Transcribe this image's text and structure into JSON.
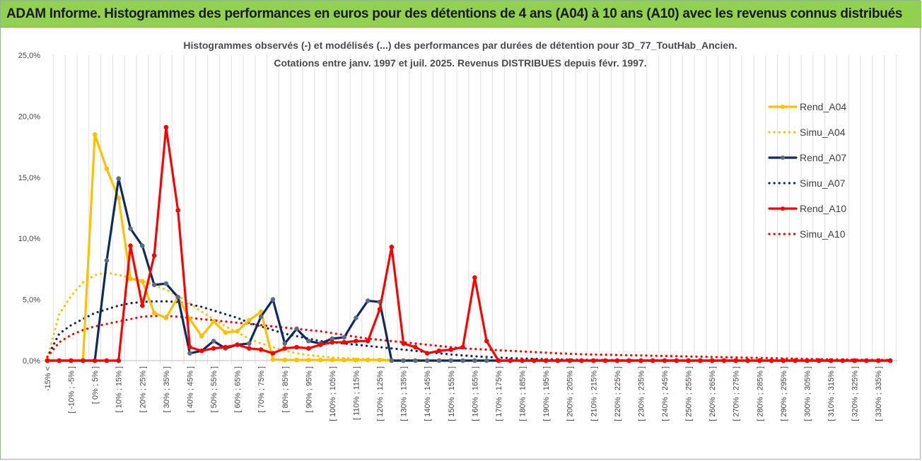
{
  "header": {
    "banner": "ADAM Informe. Histogrammes des performances en euros pour des détentions de 4 ans (A04) à 10 ans (A10) avec les revenus connus distribués"
  },
  "colors": {
    "banner_bg": "#92d050",
    "A04": "#ffc000",
    "A07": "#0f2a5c",
    "A10": "#ff0000",
    "A07_marker": "#5a6e8a"
  },
  "chart_data": {
    "type": "line",
    "title": [
      "Histogrammes observés (-) et modélisés (...) des performances par durées de détention pour 3D_77_ToutHab_Ancien.",
      "Cotations entre janv. 1997 et juil. 2025. Revenus DISTRIBUES depuis févr. 1997."
    ],
    "xlabel": "",
    "ylabel": "",
    "ylim": [
      0,
      25
    ],
    "y_ticks": [
      "0,0%",
      "5,0%",
      "10,0%",
      "15,0%",
      "20,0%",
      "25,0%"
    ],
    "grid": "vertical",
    "legend_position": "right",
    "categories": [
      "-15% <",
      "[ -15% ; -10% ]",
      "[ -10% ; -5% ]",
      "[ -5% ; 0% ]",
      "[ 0% ; 5% ]",
      "[ 5% ; 10% ]",
      "[ 10% ; 15% ]",
      "[ 15% ; 20% ]",
      "[ 20% ; 25% ]",
      "[ 25% ; 30% ]",
      "[ 30% ; 35% ]",
      "[ 35% ; 40% ]",
      "[ 40% ; 45% ]",
      "[ 45% ; 50% ]",
      "[ 50% ; 55% ]",
      "[ 55% ; 60% ]",
      "[ 60% ; 65% ]",
      "[ 65% ; 70% ]",
      "[ 70% ; 75% ]",
      "[ 75% ; 80% ]",
      "[ 80% ; 85% ]",
      "[ 85% ; 90% ]",
      "[ 90% ; 95% ]",
      "[ 95% ; 100% ]",
      "[ 100% ; 105% ]",
      "[ 105% ; 110% ]",
      "[ 110% ; 115% ]",
      "[ 115% ; 120% ]",
      "[ 120% ; 125% ]",
      "[ 125% ; 130% ]",
      "[ 130% ; 135% ]",
      "[ 135% ; 140% ]",
      "[ 140% ; 145% ]",
      "[ 145% ; 150% ]",
      "[ 150% ; 155% ]",
      "[ 155% ; 160% ]",
      "[ 160% ; 165% ]",
      "[ 165% ; 170% ]",
      "[ 170% ; 175% ]",
      "[ 175% ; 180% ]",
      "[ 180% ; 185% ]",
      "[ 185% ; 190% ]",
      "[ 190% ; 195% ]",
      "[ 195% ; 200% ]",
      "[ 200% ; 205% ]",
      "[ 205% ; 210% ]",
      "[ 210% ; 215% ]",
      "[ 215% ; 220% ]",
      "[ 220% ; 225% ]",
      "[ 225% ; 230% ]",
      "[ 230% ; 235% ]",
      "[ 235% ; 240% ]",
      "[ 240% ; 245% ]",
      "[ 245% ; 250% ]",
      "[ 250% ; 255% ]",
      "[ 255% ; 260% ]",
      "[ 260% ; 265% ]",
      "[ 265% ; 270% ]",
      "[ 270% ; 275% ]",
      "[ 275% ; 280% ]",
      "[ 280% ; 285% ]",
      "[ 285% ; 290% ]",
      "[ 290% ; 295% ]",
      "[ 295% ; 300% ]",
      "[ 300% ; 305% ]",
      "[ 305% ; 310% ]",
      "[ 310% ; 315% ]",
      "[ 315% ; 320% ]",
      "[ 320% ; 325% ]",
      "[ 325% ; 330% ]",
      "[ 330% ; 335% ]",
      "[ 335% ; 340% ]"
    ],
    "series": [
      {
        "name": "Rend_A04",
        "style": "solid",
        "color": "#ffc000",
        "marker": true,
        "values": [
          0,
          0,
          0,
          0,
          18.5,
          15.7,
          13.3,
          6.7,
          6.5,
          3.9,
          3.5,
          5.2,
          3.4,
          2.0,
          3.2,
          2.3,
          2.4,
          3.3,
          4.0,
          0.1,
          0.05,
          0.05,
          0.05,
          0.05,
          0.05,
          0.05,
          0.05,
          0.05,
          0.05,
          0,
          0,
          0,
          0,
          0,
          0,
          0,
          0,
          0,
          0,
          0,
          0,
          0,
          0,
          0,
          0,
          0,
          0,
          0,
          0,
          0,
          0,
          0,
          0,
          0,
          0,
          0,
          0,
          0,
          0,
          0,
          0,
          0,
          0,
          0,
          0,
          0,
          0,
          0,
          0,
          0,
          0,
          0
        ]
      },
      {
        "name": "Simu_A04",
        "style": "dotted",
        "color": "#ffc000",
        "marker": false,
        "values": [
          0.2,
          3.8,
          5.3,
          6.4,
          7.0,
          7.2,
          7.0,
          6.8,
          6.5,
          6.2,
          5.8,
          5.3,
          4.7,
          4.0,
          3.4,
          2.8,
          2.3,
          1.8,
          1.4,
          1.1,
          0.8,
          0.6,
          0.45,
          0.35,
          0.25,
          0.2,
          0.15,
          0.12,
          0.1,
          0.08,
          0.06,
          0.05,
          0.04,
          0.03,
          0.02,
          0.02,
          0.01,
          0.01,
          0.01,
          0.01,
          0,
          0,
          0,
          0,
          0,
          0,
          0,
          0,
          0,
          0,
          0,
          0,
          0,
          0,
          0,
          0,
          0,
          0,
          0,
          0,
          0,
          0,
          0,
          0,
          0,
          0,
          0,
          0,
          0,
          0,
          0,
          0
        ]
      },
      {
        "name": "Rend_A07",
        "style": "solid",
        "color": "#0f2a5c",
        "marker": true,
        "values": [
          0,
          0,
          0,
          0,
          0,
          8.2,
          14.9,
          10.8,
          9.4,
          6.2,
          6.3,
          5.2,
          0.6,
          0.8,
          1.6,
          1.0,
          1.3,
          1.4,
          3.6,
          5.0,
          1.4,
          2.6,
          1.6,
          1.4,
          1.8,
          1.9,
          3.5,
          4.9,
          4.8,
          0,
          0,
          0,
          0,
          0,
          0,
          0,
          0,
          0,
          0,
          0,
          0,
          0,
          0,
          0,
          0,
          0,
          0,
          0,
          0,
          0,
          0,
          0,
          0,
          0,
          0,
          0,
          0,
          0,
          0,
          0,
          0,
          0,
          0,
          0,
          0,
          0,
          0,
          0,
          0,
          0,
          0,
          0
        ]
      },
      {
        "name": "Simu_A07",
        "style": "dotted",
        "color": "#0f2a5c",
        "marker": false,
        "values": [
          0.3,
          2.2,
          2.9,
          3.4,
          3.9,
          4.2,
          4.5,
          4.7,
          4.8,
          4.85,
          4.85,
          4.8,
          4.6,
          4.4,
          4.1,
          3.8,
          3.5,
          3.1,
          2.8,
          2.5,
          2.2,
          2.0,
          1.8,
          1.6,
          1.5,
          1.4,
          1.3,
          1.2,
          1.1,
          1.0,
          0.9,
          0.8,
          0.7,
          0.6,
          0.5,
          0.42,
          0.35,
          0.3,
          0.25,
          0.2,
          0.17,
          0.14,
          0.12,
          0.1,
          0.08,
          0.07,
          0.06,
          0.05,
          0.04,
          0.03,
          0.03,
          0.02,
          0.02,
          0.02,
          0.01,
          0.01,
          0.01,
          0.01,
          0.01,
          0.01,
          0,
          0,
          0,
          0,
          0,
          0,
          0,
          0,
          0,
          0,
          0,
          0
        ]
      },
      {
        "name": "Rend_A10",
        "style": "solid",
        "color": "#ff0000",
        "marker": true,
        "values": [
          0,
          0,
          0,
          0,
          0,
          0,
          0,
          9.4,
          4.5,
          8.6,
          19.1,
          12.3,
          1.1,
          0.8,
          1.0,
          1.1,
          1.3,
          1.0,
          0.9,
          0.6,
          1.0,
          1.1,
          1.0,
          1.3,
          1.5,
          1.5,
          1.6,
          1.6,
          4.2,
          9.3,
          1.4,
          1.1,
          0.6,
          0.8,
          0.9,
          1.1,
          6.8,
          1.6,
          0,
          0,
          0,
          0,
          0,
          0,
          0,
          0,
          0,
          0,
          0,
          0,
          0,
          0,
          0,
          0,
          0,
          0,
          0,
          0,
          0,
          0,
          0,
          0,
          0,
          0,
          0,
          0,
          0,
          0,
          0,
          0,
          0,
          0
        ]
      },
      {
        "name": "Simu_A10",
        "style": "dotted",
        "color": "#ff0000",
        "marker": false,
        "values": [
          0.3,
          1.5,
          2.1,
          2.5,
          2.8,
          3.0,
          3.2,
          3.4,
          3.6,
          3.65,
          3.65,
          3.6,
          3.5,
          3.4,
          3.3,
          3.2,
          3.1,
          3.0,
          2.9,
          2.8,
          2.7,
          2.6,
          2.5,
          2.4,
          2.25,
          2.1,
          1.95,
          1.8,
          1.7,
          1.6,
          1.5,
          1.4,
          1.3,
          1.2,
          1.1,
          1.0,
          0.95,
          0.9,
          0.85,
          0.8,
          0.75,
          0.7,
          0.65,
          0.6,
          0.56,
          0.52,
          0.5,
          0.48,
          0.46,
          0.44,
          0.42,
          0.4,
          0.38,
          0.36,
          0.34,
          0.32,
          0.3,
          0.28,
          0.26,
          0.24,
          0.22,
          0.2,
          0.18,
          0.16,
          0.14,
          0.12,
          0.1,
          0.09,
          0.08,
          0.07,
          0.06,
          0.05
        ]
      }
    ]
  }
}
